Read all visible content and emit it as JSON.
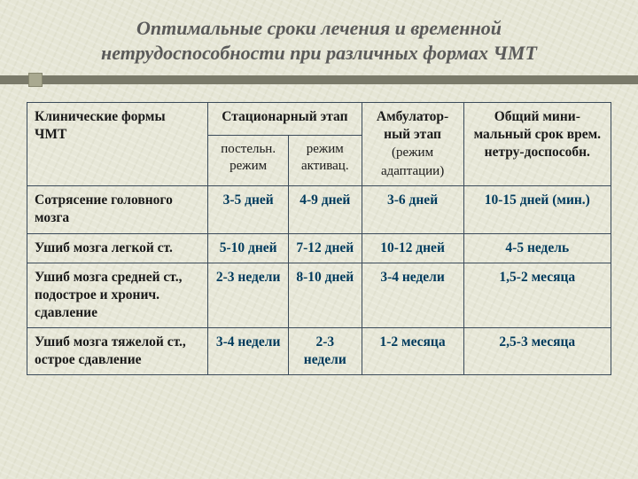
{
  "title": "Оптимальные сроки лечения и временной нетрудоспособности при различных формах ЧМТ",
  "headers": {
    "clinical_forms": "Клинические формы ЧМТ",
    "inpatient": "Стационарный этап",
    "bed_rest": "постельн. режим",
    "activation": "режим активац.",
    "outpatient_line1": "Амбулатор-ный этап",
    "outpatient_line2": "(режим адаптации)",
    "total_min_line1": "Общий мини-мальный срок врем. нетру-доспособн."
  },
  "rows": [
    {
      "name": "Сотрясение головного мозга",
      "c1": "3-5 дней",
      "c2": "4-9 дней",
      "c3": "3-6 дней",
      "c4": "10-15 дней (мин.)"
    },
    {
      "name": "Ушиб мозга легкой ст.",
      "c1": "5-10 дней",
      "c2": "7-12 дней",
      "c3": "10-12 дней",
      "c4": "4-5 недель"
    },
    {
      "name": "Ушиб мозга средней ст., подострое и хронич. сдавление",
      "c1": "2-3 недели",
      "c2": "8-10 дней",
      "c3": "3-4 недели",
      "c4": "1,5-2 месяца"
    },
    {
      "name": "Ушиб мозга тяжелой ст., острое сдавление",
      "c1": "3-4 недели",
      "c2": "2-3 недели",
      "c3": "1-2 месяца",
      "c4": "2,5-3 месяца"
    }
  ],
  "colors": {
    "background": "#e6e6d6",
    "title_text": "#5a5a5a",
    "border": "#3a4a5a",
    "value_text": "#003a5c",
    "decor_bar": "#7a7a6a",
    "decor_square": "#a9a990"
  },
  "fonts": {
    "title_size_pt": 17,
    "cell_size_pt": 12
  }
}
